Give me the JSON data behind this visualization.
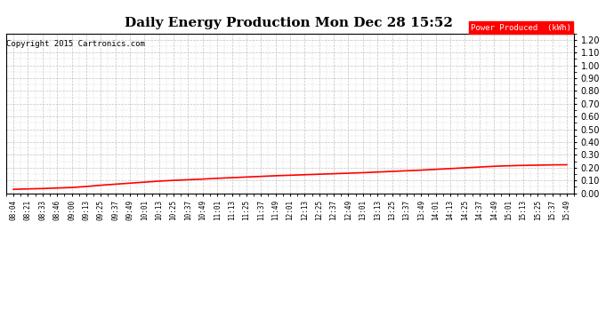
{
  "title": "Daily Energy Production Mon Dec 28 15:52",
  "copyright_text": "Copyright 2015 Cartronics.com",
  "legend_label": "Power Produced  (kWh)",
  "legend_bg": "#ff0000",
  "legend_text_color": "#ffffff",
  "line_color": "#ff0000",
  "background_color": "#ffffff",
  "grid_color": "#bbbbbb",
  "ylim": [
    0.0,
    1.25
  ],
  "yticks": [
    0.0,
    0.1,
    0.2,
    0.3,
    0.4,
    0.5,
    0.6,
    0.7,
    0.8,
    0.9,
    1.0,
    1.1,
    1.2
  ],
  "x_labels": [
    "08:04",
    "08:21",
    "08:33",
    "08:46",
    "09:00",
    "09:13",
    "09:25",
    "09:37",
    "09:49",
    "10:01",
    "10:13",
    "10:25",
    "10:37",
    "10:49",
    "11:01",
    "11:13",
    "11:25",
    "11:37",
    "11:49",
    "12:01",
    "12:13",
    "12:25",
    "12:37",
    "12:49",
    "13:01",
    "13:13",
    "13:25",
    "13:37",
    "13:49",
    "14:01",
    "14:13",
    "14:25",
    "14:37",
    "14:49",
    "15:01",
    "15:13",
    "15:25",
    "15:37",
    "15:49"
  ],
  "y_values": [
    0.03,
    0.033,
    0.036,
    0.04,
    0.044,
    0.052,
    0.062,
    0.07,
    0.078,
    0.086,
    0.094,
    0.1,
    0.105,
    0.11,
    0.116,
    0.121,
    0.126,
    0.131,
    0.136,
    0.14,
    0.144,
    0.148,
    0.152,
    0.156,
    0.16,
    0.165,
    0.17,
    0.175,
    0.18,
    0.186,
    0.192,
    0.198,
    0.204,
    0.21,
    0.214,
    0.217,
    0.219,
    0.221,
    0.222
  ]
}
